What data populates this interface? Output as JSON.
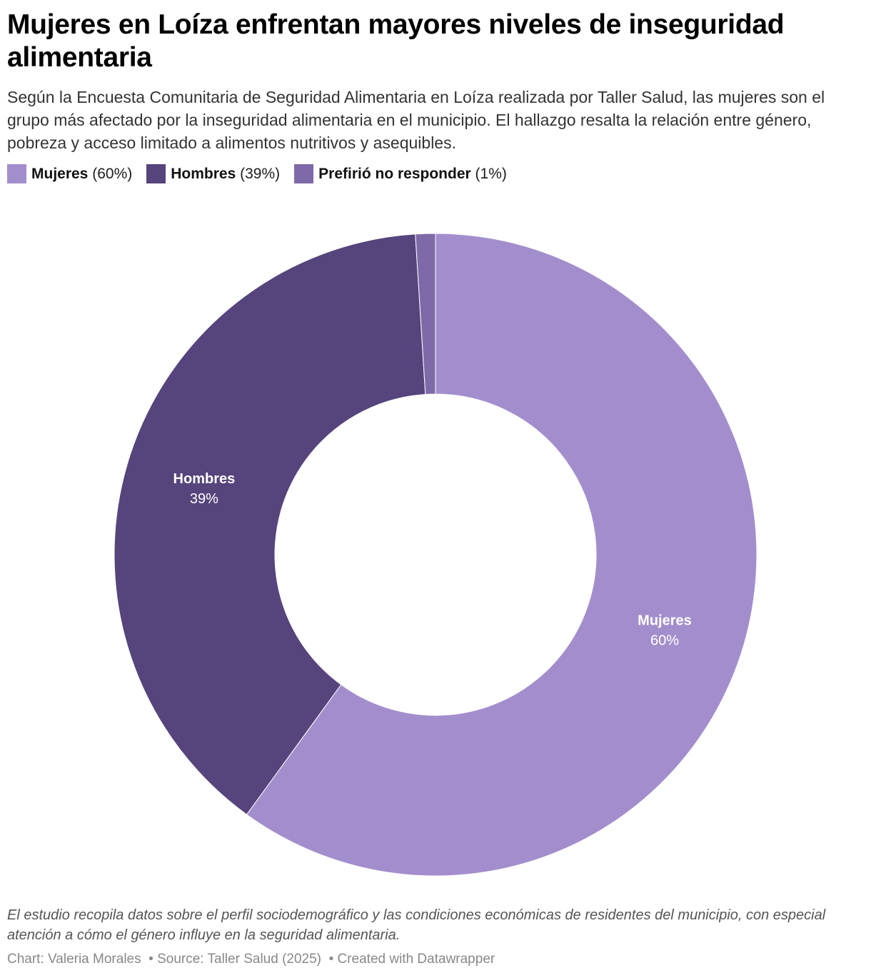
{
  "title": "Mujeres en Loíza enfrentan mayores niveles de inseguridad alimentaria",
  "subtitle": "Según la Encuesta Comunitaria de Seguridad Alimentaria en Loíza realizada por Taller Salud, las mujeres son el grupo más afectado por la inseguridad alimentaria en el municipio. El hallazgo resalta la relación entre género, pobreza y acceso limitado a alimentos nutritivos y asequibles.",
  "legend": [
    {
      "name": "Mujeres",
      "value": "(60%)"
    },
    {
      "name": "Hombres",
      "value": "(39%)"
    },
    {
      "name": "Prefirió no responder",
      "value": "(1%)"
    }
  ],
  "chart_data": {
    "type": "pie",
    "variant": "donut",
    "start": "top",
    "direction": "clockwise",
    "categories": [
      "Mujeres",
      "Hombres",
      "Prefirió no responder"
    ],
    "values": [
      60,
      39,
      1
    ],
    "colors": [
      "#a38ecd",
      "#56447c",
      "#7e6aa8"
    ],
    "labels": [
      {
        "name": "Mujeres",
        "value": "60%"
      },
      {
        "name": "Hombres",
        "value": "39%"
      }
    ]
  },
  "notes": "El estudio recopila datos sobre el perfil sociodemográfico y las condiciones económicas de residentes del municipio, con especial atención a cómo el género influye en la seguridad alimentaria.",
  "footer": {
    "chart": "Chart: Valeria Morales",
    "source": "• Source: Taller Salud (2025)",
    "created": "• Created with Datawrapper"
  }
}
